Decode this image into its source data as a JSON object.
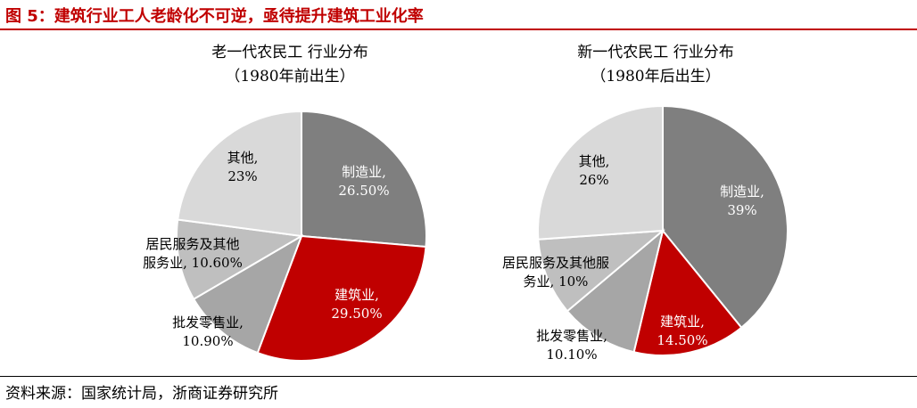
{
  "figure_title": "图 5：建筑行业工人老龄化不可逆，亟待提升建筑工业化率",
  "source": "资料来源：国家统计局，浙商证券研究所",
  "chart_data": [
    {
      "type": "pie",
      "title": "老一代农民工 行业分布",
      "subtitle": "（1980年前出生）",
      "slices": [
        {
          "label": "制造业,",
          "value": 26.5,
          "value_label": "26.50%",
          "color": "#7f7f7f",
          "label_color": "#ffffff"
        },
        {
          "label": "建筑业,",
          "value": 29.5,
          "value_label": "29.50%",
          "color": "#c00000",
          "label_color": "#ffffff"
        },
        {
          "label": "批发零售业,",
          "value": 10.9,
          "value_label": "10.90%",
          "color": "#a6a6a6",
          "label_color": "#000000"
        },
        {
          "label": "居民服务及其他服务业,",
          "value": 10.6,
          "value_label": "10.60%",
          "color": "#bfbfbf",
          "label_color": "#000000"
        },
        {
          "label": "其他,",
          "value": 23,
          "value_label": "23%",
          "color": "#d9d9d9",
          "label_color": "#000000"
        }
      ]
    },
    {
      "type": "pie",
      "title": "新一代农民工 行业分布",
      "subtitle": "（1980年后出生）",
      "slices": [
        {
          "label": "制造业,",
          "value": 39,
          "value_label": "39%",
          "color": "#7f7f7f",
          "label_color": "#ffffff"
        },
        {
          "label": "建筑业,",
          "value": 14.5,
          "value_label": "14.50%",
          "color": "#c00000",
          "label_color": "#ffffff"
        },
        {
          "label": "批发零售业,",
          "value": 10.1,
          "value_label": "10.10%",
          "color": "#a6a6a6",
          "label_color": "#000000"
        },
        {
          "label": "居民服务及其他服务业,",
          "value": 10,
          "value_label": "10%",
          "color": "#bfbfbf",
          "label_color": "#000000"
        },
        {
          "label": "其他,",
          "value": 26,
          "value_label": "26%",
          "color": "#d9d9d9",
          "label_color": "#000000"
        }
      ]
    }
  ]
}
